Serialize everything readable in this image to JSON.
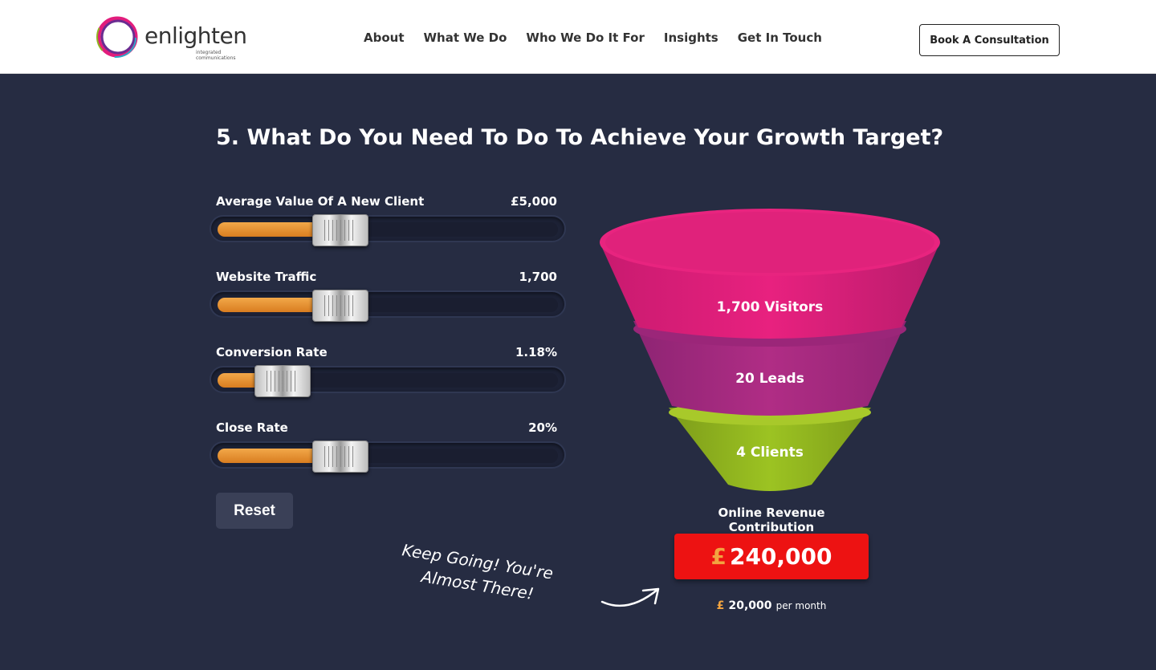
{
  "brand": {
    "name": "enlighten",
    "tagline": "integrated communications"
  },
  "nav": {
    "items": [
      "About",
      "What We Do",
      "Who We Do It For",
      "Insights",
      "Get In Touch"
    ],
    "cta": "Book A Consultation"
  },
  "section": {
    "title": "5. What Do You Need To Do To Achieve Your Growth Target?"
  },
  "sliders": [
    {
      "label": "Average Value Of A New Client",
      "display": "£5,000",
      "fraction": 0.36
    },
    {
      "label": "Website Traffic",
      "display": "1,700",
      "fraction": 0.36
    },
    {
      "label": "Conversion Rate",
      "display": "1.18%",
      "fraction": 0.19
    },
    {
      "label": "Close Rate",
      "display": "20%",
      "fraction": 0.36
    }
  ],
  "reset_label": "Reset",
  "funnel": {
    "visitors": "1,700 Visitors",
    "leads": "20 Leads",
    "clients": "4 Clients"
  },
  "revenue": {
    "title": "Online Revenue Contribution",
    "currency": "£",
    "amount": "240,000",
    "monthly_amount": "20,000",
    "monthly_suffix": "per month"
  },
  "encouragement": {
    "line1": "Keep Going! You're",
    "line2": "Almost There!"
  },
  "colors": {
    "accent": "#f2a440",
    "funnel_top": "#e21d7c",
    "funnel_mid": "#a8297f",
    "funnel_bottom": "#8fb21f",
    "revenue_box": "#ed1212"
  }
}
